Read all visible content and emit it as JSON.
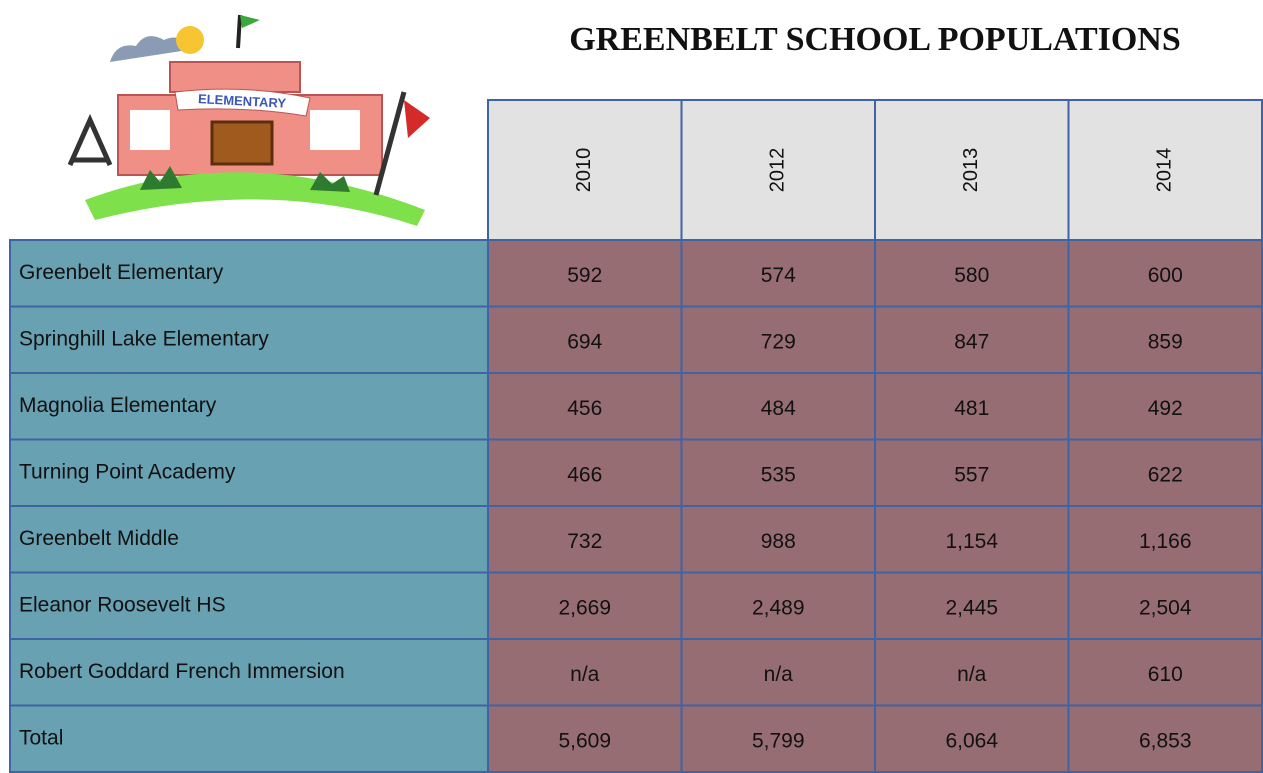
{
  "title": "GREENBELT SCHOOL POPULATIONS",
  "logo_text": "ELEMENTARY",
  "table": {
    "columns": [
      "2010",
      "2012",
      "2013",
      "2014"
    ],
    "rows": [
      {
        "name": "Greenbelt Elementary",
        "values": [
          "592",
          "574",
          "580",
          "600"
        ]
      },
      {
        "name": "Springhill Lake Elementary",
        "values": [
          "694",
          "729",
          "847",
          "859"
        ]
      },
      {
        "name": "Magnolia Elementary",
        "values": [
          "456",
          "484",
          "481",
          "492"
        ]
      },
      {
        "name": "Turning Point Academy",
        "values": [
          "466",
          "535",
          "557",
          "622"
        ]
      },
      {
        "name": "Greenbelt Middle",
        "values": [
          "732",
          "988",
          "1,154",
          "1,166"
        ]
      },
      {
        "name": "Eleanor Roosevelt HS",
        "values": [
          "2,669",
          "2,489",
          "2,445",
          "2,504"
        ]
      },
      {
        "name": "Robert Goddard French Immersion",
        "values": [
          "n/a",
          "n/a",
          "n/a",
          "610"
        ]
      },
      {
        "name": "Total",
        "values": [
          "5,609",
          "5,799",
          "6,064",
          "6,853"
        ]
      }
    ]
  }
}
